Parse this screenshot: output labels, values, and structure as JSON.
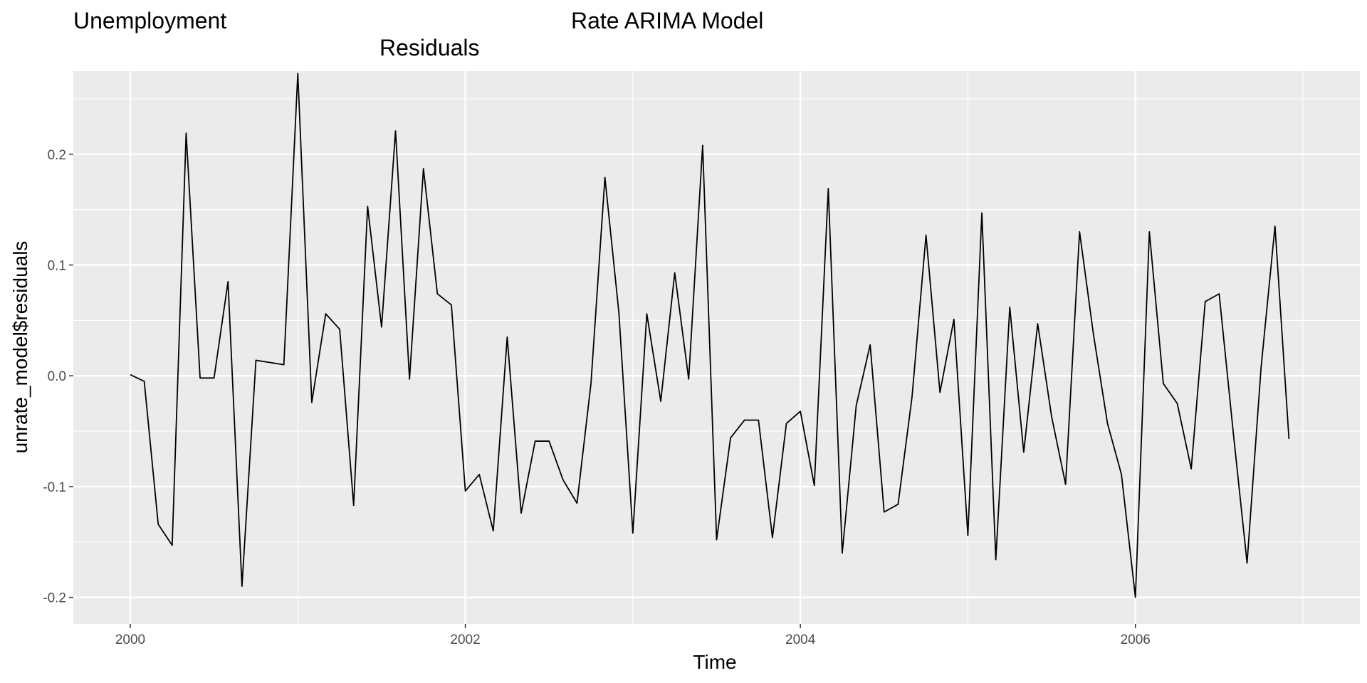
{
  "title_parts": [
    "Unemployment",
    "Rate ARIMA Model",
    "Residuals"
  ],
  "chart_data": {
    "type": "line",
    "title": "Unemployment Rate ARIMA Model Residuals",
    "xlabel": "Time",
    "ylabel": "unrate_model$residuals",
    "x_ticks": [
      2000,
      2002,
      2004,
      2006
    ],
    "y_ticks": [
      -0.2,
      -0.1,
      0.0,
      0.1,
      0.2
    ],
    "y_tick_labels": [
      "-0.2",
      "-0.1",
      "0.0",
      "0.1",
      "0.2"
    ],
    "xlim": [
      1999.66,
      2007.34
    ],
    "ylim": [
      -0.224,
      0.275
    ],
    "grid": true,
    "background": "#ebebeb",
    "grid_color": "#ffffff",
    "line_color": "#000000",
    "x_start": 2000.0,
    "x_step": 0.083333,
    "values": [
      0.001,
      -0.005,
      -0.134,
      -0.153,
      0.219,
      -0.002,
      -0.002,
      0.085,
      -0.19,
      0.014,
      0.012,
      0.01,
      0.273,
      -0.024,
      0.056,
      0.042,
      -0.117,
      0.153,
      0.044,
      0.221,
      -0.003,
      0.187,
      0.074,
      0.064,
      -0.104,
      -0.089,
      -0.14,
      0.035,
      -0.124,
      -0.059,
      -0.059,
      -0.094,
      -0.115,
      -0.007,
      0.179,
      0.057,
      -0.142,
      0.056,
      -0.023,
      0.093,
      -0.003,
      0.208,
      -0.148,
      -0.056,
      -0.04,
      -0.04,
      -0.146,
      -0.043,
      -0.032,
      -0.099,
      0.169,
      -0.16,
      -0.027,
      0.028,
      -0.123,
      -0.116,
      -0.019,
      0.127,
      -0.015,
      0.051,
      -0.144,
      0.147,
      -0.166,
      0.062,
      -0.069,
      0.047,
      -0.037,
      -0.098,
      0.13,
      0.037,
      -0.043,
      -0.089,
      -0.2,
      0.13,
      -0.007,
      -0.025,
      -0.084,
      0.067,
      0.074,
      -0.05,
      -0.169,
      0.007,
      0.135,
      -0.057
    ]
  }
}
